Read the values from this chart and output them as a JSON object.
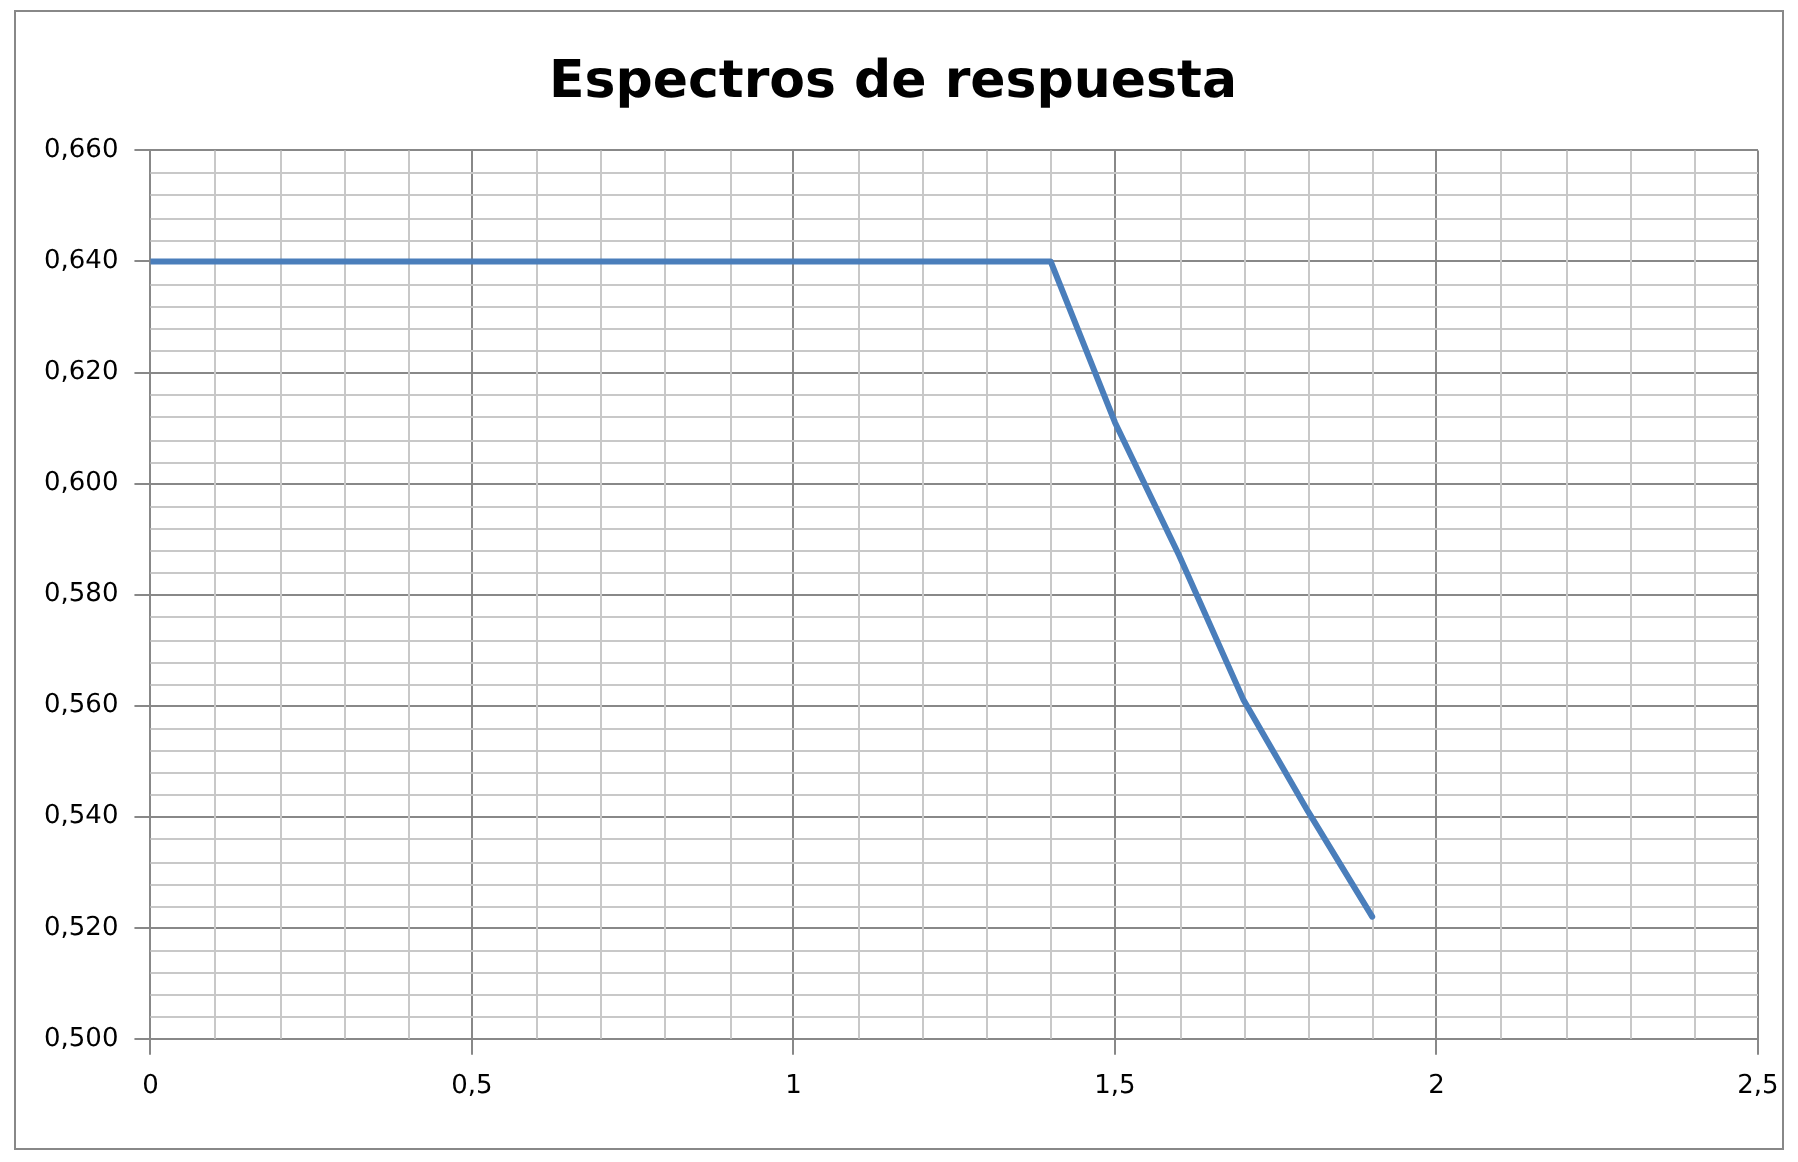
{
  "chart_data": {
    "type": "line",
    "title": "Espectros de respuesta",
    "x": [
      0,
      1.4,
      1.5,
      1.6,
      1.7,
      1.8,
      1.9
    ],
    "series": [
      {
        "color": "#4a7ebb",
        "values": [
          0.64,
          0.64,
          0.611,
          0.587,
          0.561,
          0.541,
          0.522
        ]
      }
    ],
    "xlim": [
      0,
      2.5
    ],
    "xticks": [
      0,
      {
        "value": 0.5,
        "label": "0,5"
      },
      1,
      {
        "value": 1.5,
        "label": "1,5"
      },
      2,
      {
        "value": 2.5,
        "label": "2,5"
      }
    ],
    "ylim": [
      0.5,
      0.66
    ],
    "yticks": [
      {
        "value": 0.5,
        "label": "0,500"
      },
      {
        "value": 0.52,
        "label": "0,520"
      },
      {
        "value": 0.54,
        "label": "0,540"
      },
      {
        "value": 0.56,
        "label": "0,560"
      },
      {
        "value": 0.58,
        "label": "0,580"
      },
      {
        "value": 0.6,
        "label": "0,600"
      },
      {
        "value": 0.62,
        "label": "0,620"
      },
      {
        "value": 0.64,
        "label": "0,640"
      },
      {
        "value": 0.66,
        "label": "0,660"
      }
    ],
    "grid": true,
    "legend": false,
    "marker": "none",
    "line_style": "solid"
  }
}
